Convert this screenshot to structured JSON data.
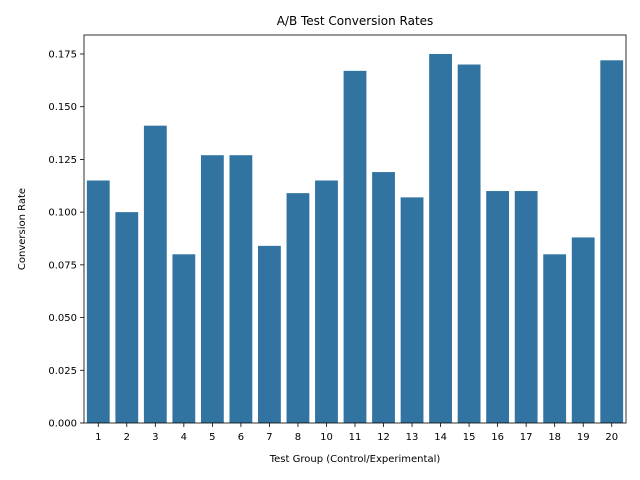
{
  "chart_data": {
    "type": "bar",
    "title": "A/B Test Conversion Rates",
    "xlabel": "Test Group (Control/Experimental)",
    "ylabel": "Conversion Rate",
    "categories": [
      "1",
      "2",
      "3",
      "4",
      "5",
      "6",
      "7",
      "8",
      "10",
      "11",
      "12",
      "13",
      "14",
      "15",
      "16",
      "17",
      "18",
      "19",
      "20"
    ],
    "values": [
      0.115,
      0.1,
      0.141,
      0.08,
      0.127,
      0.127,
      0.084,
      0.109,
      0.115,
      0.167,
      0.119,
      0.107,
      0.175,
      0.17,
      0.11,
      0.11,
      0.08,
      0.088,
      0.172
    ],
    "ylim": [
      0,
      0.184
    ],
    "yticks": [
      "0.000",
      "0.025",
      "0.050",
      "0.075",
      "0.100",
      "0.125",
      "0.150",
      "0.175"
    ],
    "bar_color": "#3274a1",
    "grid": false,
    "legend": "none"
  }
}
